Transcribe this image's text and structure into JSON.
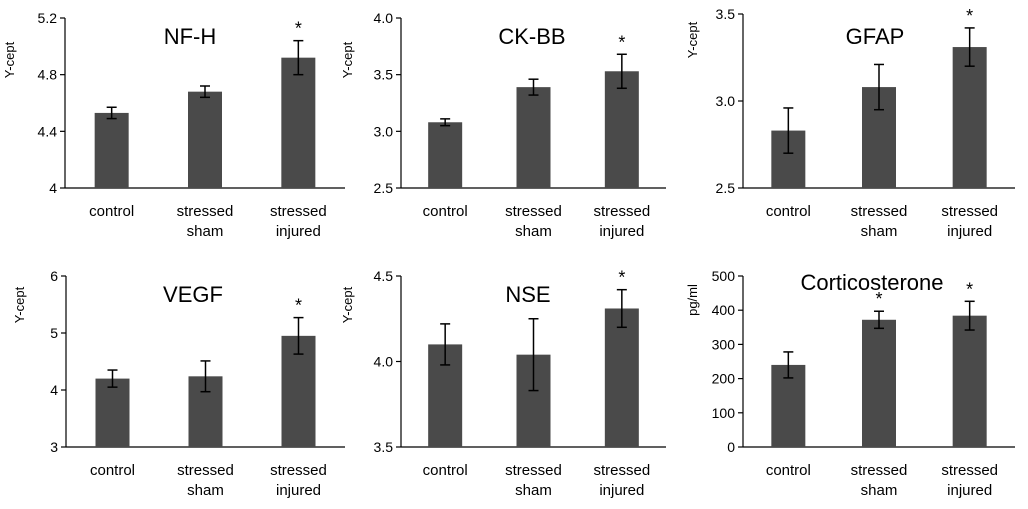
{
  "chart_data": [
    {
      "type": "bar",
      "title": "NF-H",
      "ylabel": "Y-cept",
      "xlabel": "",
      "categories": [
        [
          "control"
        ],
        [
          "stressed",
          "sham"
        ],
        [
          "stressed",
          "injured"
        ]
      ],
      "values": [
        4.53,
        4.68,
        4.92
      ],
      "errors": [
        0.04,
        0.04,
        0.12
      ],
      "significant": [
        false,
        false,
        true
      ],
      "ylim": [
        4,
        5.2
      ],
      "yticks": [
        {
          "v": 4,
          "label": "4"
        },
        {
          "v": 4.4,
          "label": "4.4"
        },
        {
          "v": 4.8,
          "label": "4.8"
        },
        {
          "v": 5.2,
          "label": "5.2"
        }
      ]
    },
    {
      "type": "bar",
      "title": "CK-BB",
      "ylabel": "Y-cept",
      "xlabel": "",
      "categories": [
        [
          "control"
        ],
        [
          "stressed",
          "sham"
        ],
        [
          "stressed",
          "injured"
        ]
      ],
      "values": [
        3.08,
        3.39,
        3.53
      ],
      "errors": [
        0.03,
        0.07,
        0.15
      ],
      "significant": [
        false,
        false,
        true
      ],
      "ylim": [
        2.5,
        4.0
      ],
      "yticks": [
        {
          "v": 2.5,
          "label": "2.5"
        },
        {
          "v": 3.0,
          "label": "3.0"
        },
        {
          "v": 3.5,
          "label": "3.5"
        },
        {
          "v": 4.0,
          "label": "4.0"
        }
      ]
    },
    {
      "type": "bar",
      "title": "GFAP",
      "ylabel": "Y-cept",
      "xlabel": "",
      "categories": [
        [
          "control"
        ],
        [
          "stressed",
          "sham"
        ],
        [
          "stressed",
          "injured"
        ]
      ],
      "values": [
        2.83,
        3.08,
        3.31
      ],
      "errors": [
        0.13,
        0.13,
        0.11
      ],
      "significant": [
        false,
        false,
        true
      ],
      "ylim": [
        2.5,
        3.5
      ],
      "yticks": [
        {
          "v": 2.5,
          "label": "2.5"
        },
        {
          "v": 3.0,
          "label": "3.0"
        },
        {
          "v": 3.5,
          "label": "3.5"
        }
      ]
    },
    {
      "type": "bar",
      "title": "VEGF",
      "ylabel": "Y-cept",
      "xlabel": "",
      "categories": [
        [
          "control"
        ],
        [
          "stressed",
          "sham"
        ],
        [
          "stressed",
          "injured"
        ]
      ],
      "values": [
        4.2,
        4.24,
        4.95
      ],
      "errors": [
        0.15,
        0.27,
        0.32
      ],
      "significant": [
        false,
        false,
        true
      ],
      "ylim": [
        3,
        6
      ],
      "yticks": [
        {
          "v": 3,
          "label": "3"
        },
        {
          "v": 4,
          "label": "4"
        },
        {
          "v": 5,
          "label": "5"
        },
        {
          "v": 6,
          "label": "6"
        }
      ]
    },
    {
      "type": "bar",
      "title": "NSE",
      "ylabel": "Y-cept",
      "xlabel": "",
      "categories": [
        [
          "control"
        ],
        [
          "stressed",
          "sham"
        ],
        [
          "stressed",
          "injured"
        ]
      ],
      "values": [
        4.1,
        4.04,
        4.31
      ],
      "errors": [
        0.12,
        0.21,
        0.11
      ],
      "significant": [
        false,
        false,
        true
      ],
      "ylim": [
        3.5,
        4.5
      ],
      "yticks": [
        {
          "v": 3.5,
          "label": "3.5"
        },
        {
          "v": 4.0,
          "label": "4.0"
        },
        {
          "v": 4.5,
          "label": "4.5"
        }
      ]
    },
    {
      "type": "bar",
      "title": "Corticosterone",
      "ylabel": "pg/ml",
      "xlabel": "",
      "categories": [
        [
          "control"
        ],
        [
          "stressed",
          "sham"
        ],
        [
          "stressed",
          "injured"
        ]
      ],
      "values": [
        240,
        372,
        384
      ],
      "errors": [
        38,
        25,
        42
      ],
      "significant": [
        false,
        true,
        true
      ],
      "ylim": [
        0,
        500
      ],
      "yticks": [
        {
          "v": 0,
          "label": "0"
        },
        {
          "v": 100,
          "label": "100"
        },
        {
          "v": 200,
          "label": "200"
        },
        {
          "v": 300,
          "label": "300"
        },
        {
          "v": 400,
          "label": "400"
        },
        {
          "v": 500,
          "label": "500"
        }
      ]
    }
  ],
  "significance_marker": "*"
}
